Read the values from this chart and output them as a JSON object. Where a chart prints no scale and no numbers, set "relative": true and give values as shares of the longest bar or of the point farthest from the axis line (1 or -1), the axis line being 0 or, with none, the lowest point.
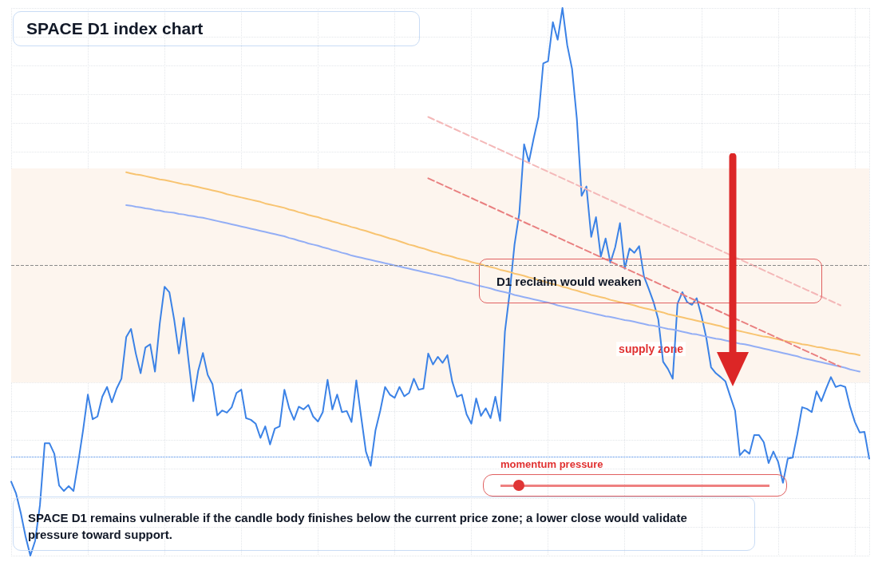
{
  "chart_data": {
    "type": "line",
    "title": "SPACE D1 index chart",
    "relative": true,
    "grid": true,
    "marker": "none",
    "categories": [
      null,
      null,
      null,
      null,
      null,
      null,
      null,
      null,
      null,
      null,
      null,
      null,
      null,
      null,
      null,
      null,
      null,
      null,
      null,
      null,
      null,
      null,
      null,
      null,
      null,
      null,
      null,
      null,
      null,
      null,
      null,
      null,
      null,
      null,
      null,
      null,
      null,
      null,
      null,
      null,
      null,
      null,
      null,
      null,
      null,
      null,
      null,
      null,
      null,
      null,
      null,
      null,
      null,
      null,
      null,
      null,
      null,
      null,
      null,
      null,
      null,
      null,
      null,
      null,
      null,
      null,
      null,
      null,
      null,
      null,
      null,
      null,
      null,
      null,
      null,
      null,
      null,
      null,
      null,
      null,
      null,
      null,
      null,
      null,
      null,
      null,
      null,
      null,
      null,
      null,
      null,
      null,
      null,
      null,
      null,
      null,
      null,
      null,
      null,
      null,
      null,
      null,
      null,
      null,
      null,
      null,
      null,
      null,
      null,
      null,
      null,
      null,
      null,
      null,
      null,
      null,
      null,
      null,
      null,
      null,
      null,
      null,
      null,
      null,
      null,
      null,
      null,
      null,
      null,
      null,
      null,
      null,
      null,
      null,
      null,
      null,
      null,
      null,
      null,
      null,
      null,
      null,
      null,
      null,
      null,
      null,
      null,
      null,
      null,
      null,
      null,
      null,
      null,
      null,
      null,
      null,
      null,
      null,
      null,
      null,
      null,
      null,
      null,
      null,
      null,
      null,
      null,
      null,
      null,
      null,
      null,
      null,
      null,
      null,
      null,
      null,
      null,
      null,
      null,
      null
    ],
    "series": [
      {
        "color": "#3b82e6",
        "values": [
          0.135,
          0.114,
          0.078,
          0.035,
          0,
          0.027,
          0.092,
          0.205,
          0.205,
          0.186,
          0.128,
          0.118,
          0.127,
          0.118,
          0.171,
          0.229,
          0.294,
          0.249,
          0.254,
          0.29,
          0.308,
          0.28,
          0.305,
          0.323,
          0.399,
          0.414,
          0.369,
          0.333,
          0.38,
          0.386,
          0.336,
          0.424,
          0.491,
          0.481,
          0.431,
          0.369,
          0.434,
          0.356,
          0.282,
          0.337,
          0.37,
          0.33,
          0.313,
          0.256,
          0.265,
          0.261,
          0.271,
          0.297,
          0.303,
          0.251,
          0.248,
          0.241,
          0.215,
          0.236,
          0.203,
          0.232,
          0.236,
          0.303,
          0.269,
          0.248,
          0.272,
          0.267,
          0.275,
          0.254,
          0.245,
          0.262,
          0.321,
          0.267,
          0.294,
          0.262,
          0.264,
          0.244,
          0.32,
          0.254,
          0.19,
          0.164,
          0.229,
          0.265,
          0.308,
          0.294,
          0.288,
          0.308,
          0.291,
          0.297,
          0.323,
          0.303,
          0.305,
          0.369,
          0.349,
          0.363,
          0.352,
          0.366,
          0.318,
          0.29,
          0.294,
          0.258,
          0.241,
          0.287,
          0.255,
          0.269,
          0.251,
          0.29,
          0.246,
          0.409,
          0.481,
          0.568,
          0.625,
          0.751,
          0.719,
          0.762,
          0.801,
          0.899,
          0.903,
          0.974,
          0.942,
          1,
          0.932,
          0.889,
          0.798,
          0.657,
          0.674,
          0.582,
          0.618,
          0.546,
          0.579,
          0.535,
          0.563,
          0.607,
          0.524,
          0.561,
          0.553,
          0.565,
          0.51,
          0.487,
          0.463,
          0.431,
          0.354,
          0.341,
          0.323,
          0.46,
          0.481,
          0.463,
          0.458,
          0.47,
          0.438,
          0.398,
          0.344,
          0.333,
          0.326,
          0.318,
          0.291,
          0.265,
          0.183,
          0.193,
          0.186,
          0.22,
          0.22,
          0.207,
          0.169,
          0.19,
          0.171,
          0.133,
          0.177,
          0.179,
          0.222,
          0.271,
          0.268,
          0.262,
          0.3,
          0.282,
          0.305,
          0.326,
          0.308,
          0.311,
          0.308,
          0.272,
          0.244,
          0.225,
          0.226,
          0.177
        ]
      },
      {
        "color": "#f8c471",
        "values": [
          null,
          null,
          null,
          null,
          null,
          null,
          null,
          null,
          null,
          null,
          null,
          null,
          null,
          null,
          null,
          null,
          null,
          null,
          null,
          null,
          null,
          null,
          null,
          null,
          0.7,
          0.698,
          0.696,
          0.695,
          0.693,
          0.691,
          0.689,
          0.687,
          0.686,
          0.684,
          0.682,
          0.68,
          0.678,
          0.677,
          0.675,
          0.673,
          0.671,
          0.669,
          0.667,
          0.665,
          0.663,
          0.66,
          0.658,
          0.656,
          0.654,
          0.652,
          0.65,
          0.648,
          0.646,
          0.643,
          0.641,
          0.639,
          0.637,
          0.635,
          0.632,
          0.63,
          0.627,
          0.625,
          0.622,
          0.62,
          0.618,
          0.615,
          0.613,
          0.61,
          0.608,
          0.605,
          0.603,
          0.6,
          0.598,
          0.595,
          0.593,
          0.59,
          0.587,
          0.585,
          0.582,
          0.579,
          0.577,
          0.574,
          0.571,
          0.568,
          0.566,
          0.563,
          0.561,
          0.558,
          0.555,
          0.553,
          0.55,
          0.548,
          0.546,
          0.543,
          0.541,
          0.539,
          0.536,
          0.534,
          0.532,
          0.529,
          0.527,
          0.525,
          0.522,
          0.52,
          0.518,
          0.515,
          0.513,
          0.511,
          0.508,
          0.506,
          0.503,
          0.501,
          0.498,
          0.496,
          0.494,
          0.491,
          0.489,
          0.486,
          0.484,
          0.481,
          0.479,
          0.476,
          0.474,
          0.472,
          0.47,
          0.467,
          0.465,
          0.463,
          0.461,
          0.459,
          0.457,
          0.454,
          0.452,
          0.45,
          0.448,
          0.446,
          0.444,
          0.441,
          0.439,
          0.437,
          0.435,
          0.433,
          0.431,
          0.429,
          0.427,
          0.425,
          0.423,
          0.421,
          0.419,
          0.416,
          0.414,
          0.412,
          0.41,
          0.408,
          0.406,
          0.404,
          0.402,
          0.4,
          0.399,
          0.397,
          0.395,
          0.393,
          0.391,
          0.39,
          0.388,
          0.386,
          0.385,
          0.383,
          0.381,
          0.38,
          0.378,
          0.376,
          0.375,
          0.373,
          0.371,
          0.369,
          0.368,
          0.366,
          null,
          null
        ]
      },
      {
        "color": "#93aef5",
        "values": [
          null,
          null,
          null,
          null,
          null,
          null,
          null,
          null,
          null,
          null,
          null,
          null,
          null,
          null,
          null,
          null,
          null,
          null,
          null,
          null,
          null,
          null,
          null,
          null,
          0.64,
          0.639,
          0.637,
          0.636,
          0.634,
          0.633,
          0.631,
          0.63,
          0.628,
          0.627,
          0.626,
          0.624,
          0.623,
          0.621,
          0.62,
          0.618,
          0.617,
          0.615,
          0.613,
          0.611,
          0.609,
          0.607,
          0.605,
          0.603,
          0.601,
          0.599,
          0.597,
          0.595,
          0.593,
          0.591,
          0.589,
          0.587,
          0.585,
          0.583,
          0.58,
          0.578,
          0.575,
          0.573,
          0.57,
          0.568,
          0.566,
          0.563,
          0.561,
          0.558,
          0.556,
          0.553,
          0.551,
          0.548,
          0.546,
          0.544,
          0.542,
          0.54,
          0.538,
          0.536,
          0.534,
          0.532,
          0.53,
          0.528,
          0.526,
          0.524,
          0.522,
          0.52,
          0.518,
          0.516,
          0.514,
          0.512,
          0.51,
          0.508,
          0.506,
          0.503,
          0.501,
          0.499,
          0.497,
          0.494,
          0.492,
          0.49,
          0.488,
          0.485,
          0.483,
          0.481,
          0.479,
          0.476,
          0.474,
          0.472,
          0.47,
          0.468,
          0.466,
          0.464,
          0.462,
          0.46,
          0.457,
          0.455,
          0.453,
          0.451,
          0.449,
          0.447,
          0.445,
          0.443,
          0.441,
          0.439,
          0.437,
          0.436,
          0.434,
          0.432,
          0.43,
          0.429,
          0.427,
          0.425,
          0.423,
          0.421,
          0.42,
          0.418,
          0.416,
          0.414,
          0.413,
          0.411,
          0.409,
          0.407,
          0.405,
          0.404,
          0.402,
          0.4,
          0.398,
          0.396,
          0.395,
          0.393,
          0.391,
          0.389,
          0.387,
          0.386,
          0.384,
          0.382,
          0.38,
          0.378,
          0.376,
          0.374,
          0.372,
          0.37,
          0.368,
          0.366,
          0.364,
          0.361,
          0.359,
          0.357,
          0.355,
          0.353,
          0.351,
          0.349,
          0.347,
          0.345,
          0.343,
          0.34,
          0.338,
          0.336,
          null,
          null
        ]
      },
      {
        "color": "#e98080",
        "line_style": "dashed",
        "values": [
          null,
          null,
          null,
          null,
          null,
          null,
          null,
          null,
          null,
          null,
          null,
          null,
          null,
          null,
          null,
          null,
          null,
          null,
          null,
          null,
          null,
          null,
          null,
          null,
          null,
          null,
          null,
          null,
          null,
          null,
          null,
          null,
          null,
          null,
          null,
          null,
          null,
          null,
          null,
          null,
          null,
          null,
          null,
          null,
          null,
          null,
          null,
          null,
          null,
          null,
          null,
          null,
          null,
          null,
          null,
          null,
          null,
          null,
          null,
          null,
          null,
          null,
          null,
          null,
          null,
          null,
          null,
          null,
          null,
          null,
          null,
          null,
          null,
          null,
          null,
          null,
          null,
          null,
          null,
          null,
          null,
          null,
          null,
          null,
          null,
          null,
          null,
          0.689,
          0.685,
          0.681,
          0.677,
          0.673,
          0.669,
          0.665,
          0.661,
          0.657,
          0.653,
          0.649,
          0.645,
          0.641,
          0.637,
          0.633,
          0.629,
          0.625,
          0.621,
          0.617,
          0.613,
          0.609,
          0.605,
          0.601,
          0.597,
          0.593,
          0.589,
          0.585,
          0.581,
          0.577,
          0.573,
          0.569,
          0.565,
          0.561,
          0.557,
          0.553,
          0.549,
          0.545,
          0.541,
          0.537,
          0.533,
          0.529,
          0.525,
          0.521,
          0.517,
          0.513,
          0.509,
          0.505,
          0.501,
          0.497,
          0.493,
          0.489,
          0.485,
          0.481,
          0.477,
          0.473,
          0.469,
          0.465,
          0.461,
          0.457,
          0.453,
          0.449,
          0.445,
          0.441,
          0.437,
          0.433,
          0.429,
          0.425,
          0.421,
          0.417,
          0.413,
          0.409,
          0.405,
          0.401,
          0.397,
          0.393,
          0.389,
          0.385,
          0.381,
          0.377,
          0.373,
          0.369,
          0.365,
          0.361,
          0.357,
          0.353,
          0.349,
          0.345,
          null,
          null,
          null,
          null,
          null,
          null
        ]
      },
      {
        "color": "#f4b8b8",
        "line_style": "dashed",
        "values": [
          null,
          null,
          null,
          null,
          null,
          null,
          null,
          null,
          null,
          null,
          null,
          null,
          null,
          null,
          null,
          null,
          null,
          null,
          null,
          null,
          null,
          null,
          null,
          null,
          null,
          null,
          null,
          null,
          null,
          null,
          null,
          null,
          null,
          null,
          null,
          null,
          null,
          null,
          null,
          null,
          null,
          null,
          null,
          null,
          null,
          null,
          null,
          null,
          null,
          null,
          null,
          null,
          null,
          null,
          null,
          null,
          null,
          null,
          null,
          null,
          null,
          null,
          null,
          null,
          null,
          null,
          null,
          null,
          null,
          null,
          null,
          null,
          null,
          null,
          null,
          null,
          null,
          null,
          null,
          null,
          null,
          null,
          null,
          null,
          null,
          null,
          null,
          0.801,
          0.797,
          0.793,
          0.789,
          0.785,
          0.781,
          0.777,
          0.773,
          0.769,
          0.765,
          0.761,
          0.757,
          0.753,
          0.749,
          0.745,
          0.741,
          0.737,
          0.733,
          0.729,
          0.725,
          0.721,
          0.717,
          0.713,
          0.709,
          0.705,
          0.701,
          0.697,
          0.693,
          0.689,
          0.685,
          0.681,
          0.677,
          0.673,
          0.669,
          0.665,
          0.661,
          0.657,
          0.653,
          0.649,
          0.645,
          0.641,
          0.637,
          0.633,
          0.629,
          0.625,
          0.621,
          0.617,
          0.613,
          0.609,
          0.605,
          0.601,
          0.597,
          0.593,
          0.589,
          0.585,
          0.581,
          0.577,
          0.573,
          0.569,
          0.565,
          0.561,
          0.557,
          0.553,
          0.549,
          0.545,
          0.541,
          0.537,
          0.533,
          0.529,
          0.525,
          0.521,
          0.517,
          0.513,
          0.509,
          0.505,
          0.501,
          0.497,
          0.493,
          0.489,
          0.485,
          0.481,
          0.477,
          0.473,
          0.469,
          0.465,
          0.461,
          0.457,
          null,
          null,
          null,
          null,
          null,
          null
        ]
      }
    ],
    "ref_lines": [
      {
        "axis": "y",
        "value": 0.527,
        "color": "#8a8a8a",
        "line_style": "dashed"
      },
      {
        "axis": "y",
        "value": 0.177,
        "color": "#3b82e6",
        "line_style": "dotted"
      }
    ],
    "bands": [
      {
        "axis": "y",
        "from": 0.316,
        "to": 0.707,
        "label": "supply zone",
        "color": "#fdf5ee"
      }
    ],
    "annotations": [
      "D1 reclaim would weaken",
      "momentum pressure",
      "SPACE D1 remains vulnerable if the candle body finishes below the current price zone; a lower close would validate pressure toward support."
    ]
  }
}
